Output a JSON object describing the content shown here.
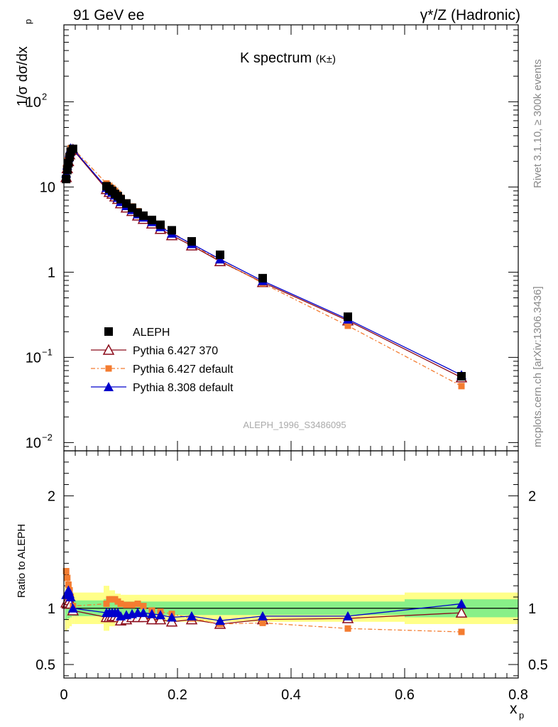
{
  "header": {
    "left": "91 GeV ee",
    "right": "γ*/Z (Hadronic)"
  },
  "side_labels": {
    "rivet": "Rivet 3.1.10, ≥ 300k events",
    "mcplots": "mcplots.cern.ch [arXiv:1306.3436]"
  },
  "chart_data": {
    "type": "line",
    "title": "K spectrum",
    "title_suffix": "(K±)",
    "watermark": "ALEPH_1996_S3486095",
    "xlabel": "x",
    "xlabel_sub": "p",
    "ylabel": "1/σ dσ/dx",
    "ylabel_sub": "p",
    "xlim": [
      0,
      0.8
    ],
    "ylim": [
      0.008,
      800
    ],
    "yscale": "log",
    "x_ticks": [
      "0",
      "0.2",
      "0.4",
      "0.6",
      "0.8"
    ],
    "y_ticks": [
      "10^-2",
      "10^-1",
      "1",
      "10",
      "10^2"
    ],
    "legend": [
      {
        "name": "ALEPH",
        "marker": "square",
        "color": "#000000"
      },
      {
        "name": "Pythia 6.427 370",
        "marker": "triangle-open",
        "color": "#8b0a1a"
      },
      {
        "name": "Pythia 6.427 default",
        "marker": "square-small",
        "color": "#f47c30"
      },
      {
        "name": "Pythia 8.308 default",
        "marker": "triangle",
        "color": "#0000cc"
      }
    ],
    "x": [
      0.004,
      0.006,
      0.008,
      0.01,
      0.012,
      0.016,
      0.075,
      0.08,
      0.085,
      0.09,
      0.095,
      0.1,
      0.11,
      0.12,
      0.13,
      0.14,
      0.155,
      0.17,
      0.19,
      0.225,
      0.275,
      0.35,
      0.5,
      0.7
    ],
    "series": [
      {
        "name": "ALEPH",
        "values": [
          12.4,
          15.8,
          19.0,
          22.5,
          26.0,
          28.0,
          10.2,
          9.5,
          9.0,
          8.3,
          7.8,
          7.2,
          6.4,
          5.7,
          5.0,
          4.6,
          4.1,
          3.6,
          3.1,
          2.3,
          1.6,
          0.85,
          0.3,
          0.06
        ]
      },
      {
        "name": "Pythia 6.427 370",
        "values": [
          13.0,
          16.5,
          20.0,
          24.0,
          27.0,
          27.5,
          9.4,
          8.7,
          8.3,
          7.7,
          7.2,
          6.4,
          5.7,
          5.2,
          4.6,
          4.2,
          3.7,
          3.2,
          2.7,
          2.05,
          1.34,
          0.76,
          0.27,
          0.058
        ]
      },
      {
        "name": "Pythia 6.427 default",
        "values": [
          16.5,
          20.0,
          23.0,
          26.0,
          28.5,
          28.5,
          11.0,
          10.3,
          9.7,
          9.0,
          8.3,
          7.5,
          6.6,
          5.9,
          5.2,
          4.7,
          4.0,
          3.5,
          2.95,
          2.1,
          1.38,
          0.74,
          0.235,
          0.046
        ]
      },
      {
        "name": "Pythia 8.308 default",
        "values": [
          14.5,
          18.0,
          22.0,
          25.5,
          28.5,
          28.0,
          9.8,
          9.1,
          8.6,
          8.0,
          7.5,
          6.7,
          6.0,
          5.4,
          4.8,
          4.4,
          3.9,
          3.4,
          2.85,
          2.15,
          1.42,
          0.79,
          0.28,
          0.062
        ]
      }
    ],
    "ratio": {
      "ylabel": "Ratio to ALEPH",
      "ylim": [
        0.38,
        2.4
      ],
      "y_ticks": [
        "0.5",
        "1",
        "2"
      ],
      "band_bins": [
        0.002,
        0.006,
        0.01,
        0.014,
        0.018,
        0.07,
        0.08,
        0.09,
        0.1,
        0.11,
        0.12,
        0.13,
        0.14,
        0.15,
        0.16,
        0.18,
        0.2,
        0.25,
        0.3,
        0.4,
        0.6,
        0.8
      ],
      "band_green": [
        0.1,
        0.09,
        0.08,
        0.07,
        0.07,
        0.08,
        0.07,
        0.06,
        0.06,
        0.06,
        0.06,
        0.06,
        0.06,
        0.06,
        0.06,
        0.06,
        0.06,
        0.06,
        0.06,
        0.06,
        0.08
      ],
      "band_yellow": [
        0.2,
        0.18,
        0.16,
        0.14,
        0.14,
        0.2,
        0.16,
        0.13,
        0.12,
        0.12,
        0.12,
        0.12,
        0.12,
        0.12,
        0.12,
        0.12,
        0.12,
        0.12,
        0.12,
        0.12,
        0.14
      ],
      "series": [
        {
          "name": "Pythia 6.427 370",
          "values": [
            1.05,
            1.04,
            1.05,
            1.07,
            1.04,
            0.98,
            0.92,
            0.92,
            0.93,
            0.93,
            0.92,
            0.89,
            0.9,
            0.92,
            0.92,
            0.92,
            0.9,
            0.9,
            0.88,
            0.9,
            0.86,
            0.9,
            0.91,
            0.96
          ]
        },
        {
          "name": "Pythia 6.427 default",
          "values": [
            1.33,
            1.27,
            1.21,
            1.16,
            1.1,
            1.02,
            1.04,
            1.08,
            1.08,
            1.08,
            1.06,
            1.04,
            1.03,
            1.03,
            1.04,
            1.02,
            0.98,
            0.97,
            0.95,
            0.91,
            0.86,
            0.87,
            0.82,
            0.79
          ]
        },
        {
          "name": "Pythia 8.308 default",
          "values": [
            1.12,
            1.14,
            1.16,
            1.13,
            1.1,
            1.0,
            0.96,
            0.96,
            0.96,
            0.96,
            0.96,
            0.93,
            0.94,
            0.95,
            0.96,
            0.96,
            0.95,
            0.94,
            0.92,
            0.93,
            0.89,
            0.93,
            0.93,
            1.04
          ]
        }
      ]
    }
  }
}
